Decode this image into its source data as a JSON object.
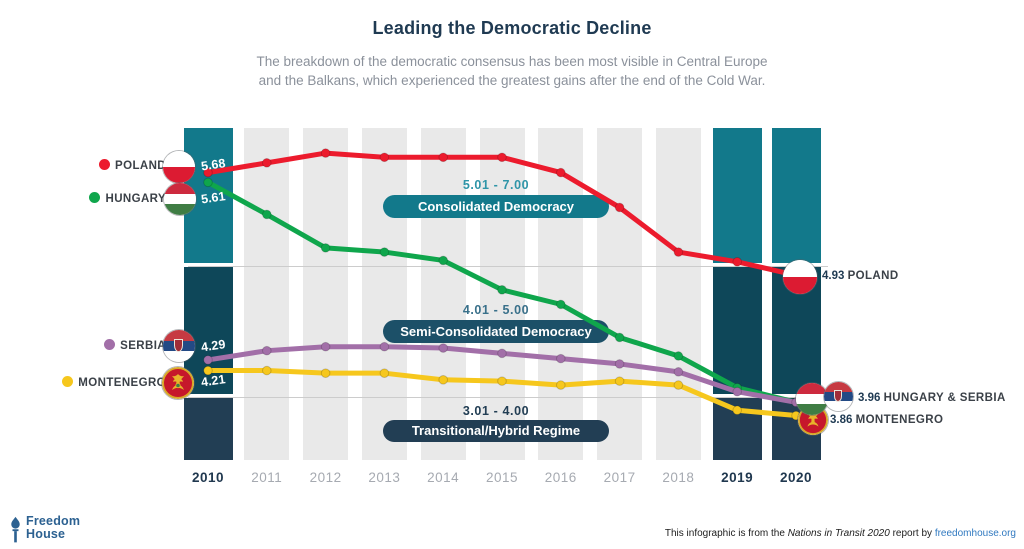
{
  "header": {
    "subtitle_line1": "The breakdown of the democratic consensus has been most visible in Central Europe",
    "subtitle_line2": "and the Balkans, which experienced the greatest gains after the end of the Cold War."
  },
  "chart_data": {
    "type": "line",
    "title": "Leading the Democratic Decline",
    "x": [
      2010,
      2011,
      2012,
      2013,
      2014,
      2015,
      2016,
      2017,
      2018,
      2019,
      2020
    ],
    "series": [
      {
        "name": "Poland",
        "color": "#ec1b2d",
        "values": [
          5.68,
          5.75,
          5.82,
          5.79,
          5.79,
          5.79,
          5.68,
          5.43,
          5.11,
          5.04,
          4.93
        ]
      },
      {
        "name": "Hungary",
        "color": "#0fa64c",
        "values": [
          5.61,
          5.38,
          5.14,
          5.11,
          5.05,
          4.82,
          4.71,
          4.46,
          4.32,
          4.08,
          3.96
        ]
      },
      {
        "name": "Serbia",
        "color": "#a26fa8",
        "values": [
          4.29,
          4.36,
          4.39,
          4.39,
          4.38,
          4.34,
          4.3,
          4.26,
          4.2,
          4.05,
          3.96
        ]
      },
      {
        "name": "Montenegro",
        "color": "#f6c71d",
        "values": [
          4.21,
          4.21,
          4.19,
          4.19,
          4.14,
          4.13,
          4.1,
          4.13,
          4.1,
          3.9,
          3.86
        ]
      }
    ],
    "bands": [
      {
        "range": "5.01 - 7.00",
        "label": "Consolidated Democracy",
        "pill_color": "#12798b",
        "range_text_color": "#2f95a8"
      },
      {
        "range": "4.01 - 5.00",
        "label": "Semi-Consolidated Democracy",
        "pill_color": "#1c5068",
        "range_text_color": "#39708a"
      },
      {
        "range": "3.01 - 4.00",
        "label": "Transitional/Hybrid Regime",
        "pill_color": "#223e54",
        "range_text_color": "#223e54"
      }
    ],
    "highlighted_years": [
      2010,
      2019,
      2020
    ],
    "column_colors": {
      "band1": "#12798b",
      "band2": "#0e4759",
      "band3": "#223e54",
      "inactive": "#e9e9e9"
    },
    "legend_position": "left",
    "grid": "off"
  },
  "left_labels": [
    {
      "name": "POLAND",
      "value": "5.68",
      "dot_color": "#ec1b2d"
    },
    {
      "name": "HUNGARY",
      "value": "5.61",
      "dot_color": "#0fa64c"
    },
    {
      "name": "SERBIA",
      "value": "4.29",
      "dot_color": "#a26fa8"
    },
    {
      "name": "MONTENEGRO",
      "value": "4.21",
      "dot_color": "#f6c71d"
    }
  ],
  "right_labels": [
    {
      "value": "4.93",
      "name": "POLAND"
    },
    {
      "value": "3.96",
      "name": "HUNGARY & SERBIA"
    },
    {
      "value": "3.86",
      "name": "MONTENEGRO"
    }
  ],
  "footer": {
    "logo_line1": "Freedom",
    "logo_line2": "House",
    "attribution_prefix": "This infographic is from the ",
    "attribution_report": "Nations in Transit 2020",
    "attribution_middle": " report by ",
    "attribution_link": "freedomhouse.org"
  }
}
